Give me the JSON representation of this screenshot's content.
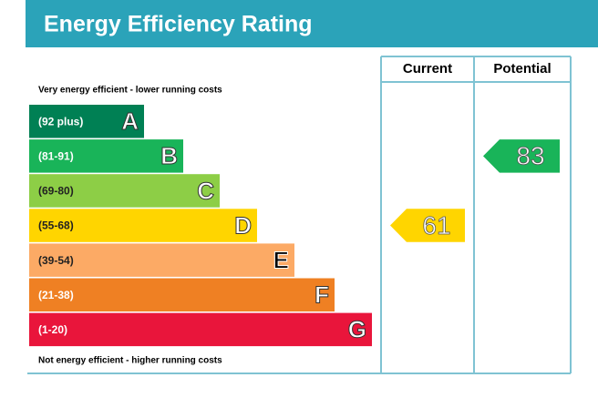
{
  "header": {
    "title": "Energy Efficiency Rating"
  },
  "columns": {
    "current": "Current",
    "potential": "Potential"
  },
  "top_note": "Very energy efficient - lower running costs",
  "bottom_note": "Not energy efficient - higher running costs",
  "bands": [
    {
      "range": "(92 plus)",
      "letter": "A",
      "color": "#008054"
    },
    {
      "range": "(81-91)",
      "letter": "B",
      "color": "#19b459"
    },
    {
      "range": "(69-80)",
      "letter": "C",
      "color": "#8dce46"
    },
    {
      "range": "(55-68)",
      "letter": "D",
      "color": "#ffd500"
    },
    {
      "range": "(39-54)",
      "letter": "E",
      "color": "#fcaa65"
    },
    {
      "range": "(21-38)",
      "letter": "F",
      "color": "#ef8023"
    },
    {
      "range": "(1-20)",
      "letter": "G",
      "color": "#e9153b"
    }
  ],
  "current": {
    "value": "61"
  },
  "potential": {
    "value": "83"
  }
}
